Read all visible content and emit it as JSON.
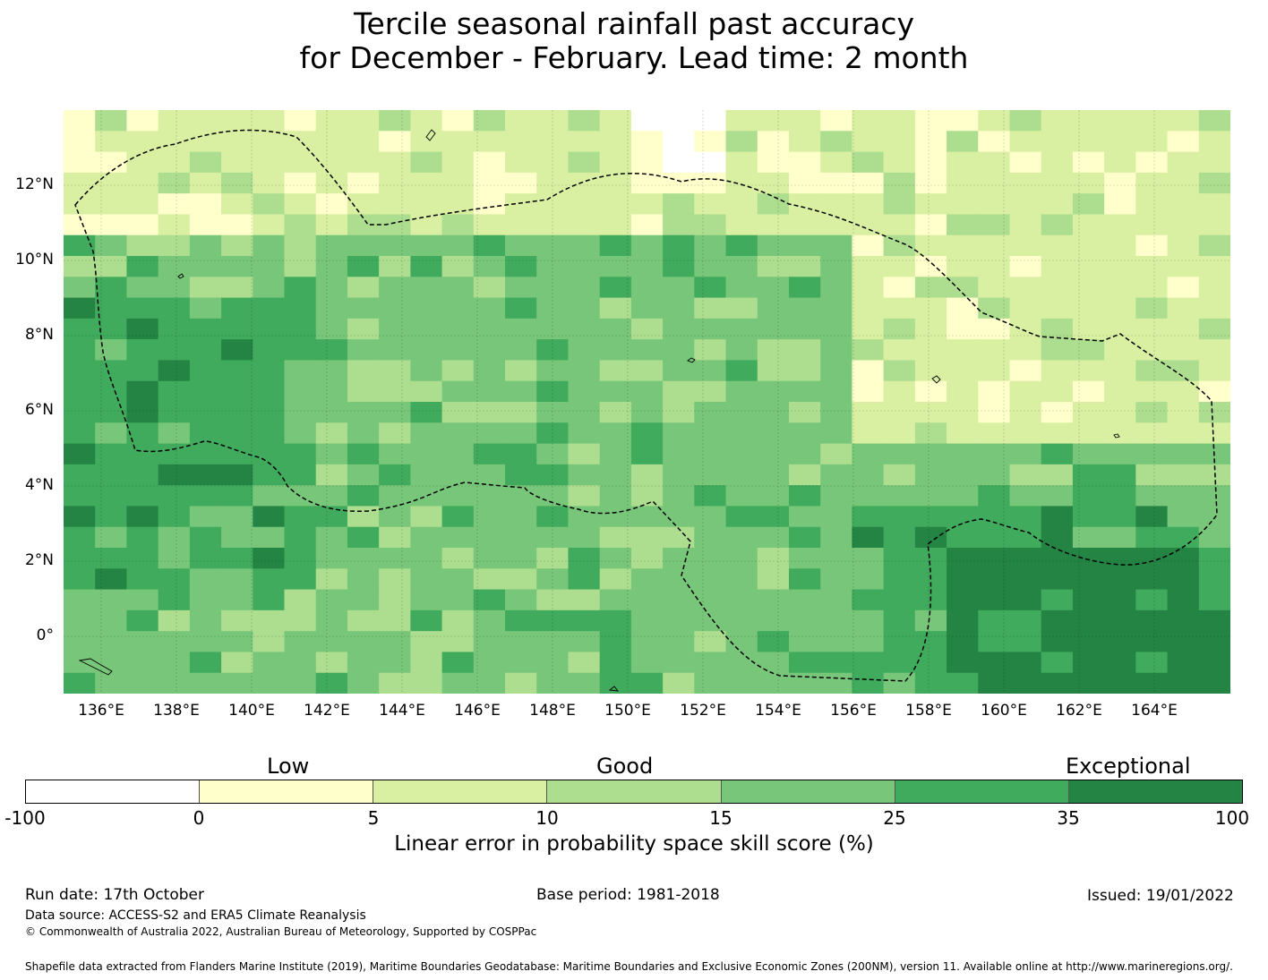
{
  "title": {
    "line1": "Tercile seasonal rainfall past accuracy",
    "line2": "for December - February. Lead time: 2 month"
  },
  "map": {
    "lon_labels": [
      "136°E",
      "138°E",
      "140°E",
      "142°E",
      "144°E",
      "146°E",
      "148°E",
      "150°E",
      "152°E",
      "154°E",
      "156°E",
      "158°E",
      "160°E",
      "162°E",
      "164°E"
    ],
    "lat_labels": [
      "12°N",
      "10°N",
      "8°N",
      "6°N",
      "4°N",
      "2°N",
      "0°"
    ],
    "lon_range": [
      135,
      166
    ],
    "lat_range": [
      -1.5,
      14
    ],
    "boundary_style": "dashed EEZ outline"
  },
  "legend": {
    "categories": {
      "low": "Low",
      "good": "Good",
      "exceptional": "Exceptional"
    },
    "ticks": [
      "-100",
      "0",
      "5",
      "10",
      "15",
      "25",
      "35",
      "100"
    ],
    "colors": [
      "#ffffff",
      "#ffffcc",
      "#d9f0a3",
      "#addd8e",
      "#78c679",
      "#41ab5d",
      "#238443"
    ],
    "label": "Linear error in probability space skill score (%)"
  },
  "footer": {
    "run_date": "Run date: 17th October",
    "base_period": "Base period: 1981-2018",
    "issued": "Issued: 19/01/2022",
    "data_source": "Data source: ACCESS-S2 and ERA5 Climate Reanalysis",
    "copyright": "© Commonwealth of Australia 2022, Australian Bureau of Meteorology, Supported by COSPPac",
    "shapefile": "Shapefile data extracted from Flanders Marine Institute (2019), Maritime Boundaries Geodatabase: Maritime Boundaries and Exclusive Economic Zones (200NM), version 11. Available online at http://www.marineregions.org/."
  }
}
